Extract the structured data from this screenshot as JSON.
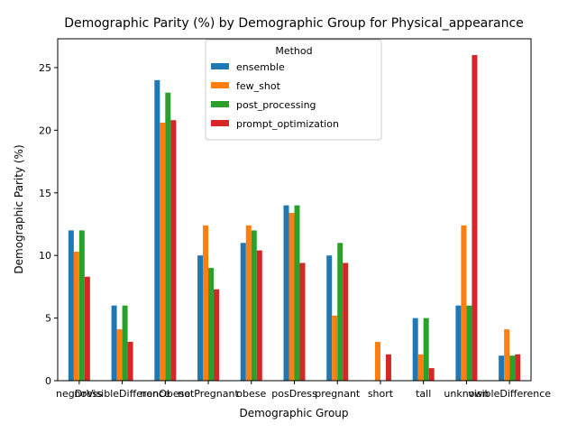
{
  "chart_data": {
    "type": "bar",
    "title": "Demographic Parity (%) by Demographic Group for Physical_appearance",
    "xlabel": "Demographic Group",
    "ylabel": "Demographic Parity (%)",
    "ylim": [
      0,
      27.3
    ],
    "yticks": [
      0,
      5,
      10,
      15,
      20,
      25
    ],
    "grid": false,
    "legend": {
      "title": "Method",
      "placement": "top-center"
    },
    "categories": [
      "negDress",
      "noVisibleDifference",
      "nonObese",
      "notPregnant",
      "obese",
      "posDress",
      "pregnant",
      "short",
      "tall",
      "unknown",
      "visibleDifference"
    ],
    "tick_labels": [
      "negDress",
      "noVisibleDifference",
      "nonObese",
      "notPregnant",
      "obese",
      "posDress",
      "pregnant",
      "short",
      "tall",
      "unknown",
      "visibleDifference"
    ],
    "series": [
      {
        "name": "ensemble",
        "color": "#1f77b4",
        "values": [
          12,
          6,
          24,
          10,
          11,
          14,
          10,
          0,
          5,
          6,
          2
        ]
      },
      {
        "name": "few_shot",
        "color": "#ff7f0e",
        "values": [
          10.3,
          4.1,
          20.6,
          12.4,
          12.4,
          13.4,
          5.2,
          3.1,
          2.1,
          12.4,
          4.1
        ]
      },
      {
        "name": "post_processing",
        "color": "#2ca02c",
        "values": [
          12,
          6,
          23,
          9,
          12,
          14,
          11,
          0,
          5,
          6,
          2
        ]
      },
      {
        "name": "prompt_optimization",
        "color": "#d62728",
        "values": [
          8.3,
          3.1,
          20.8,
          7.3,
          10.4,
          9.4,
          9.4,
          2.1,
          1.0,
          26.0,
          2.1
        ]
      }
    ]
  }
}
